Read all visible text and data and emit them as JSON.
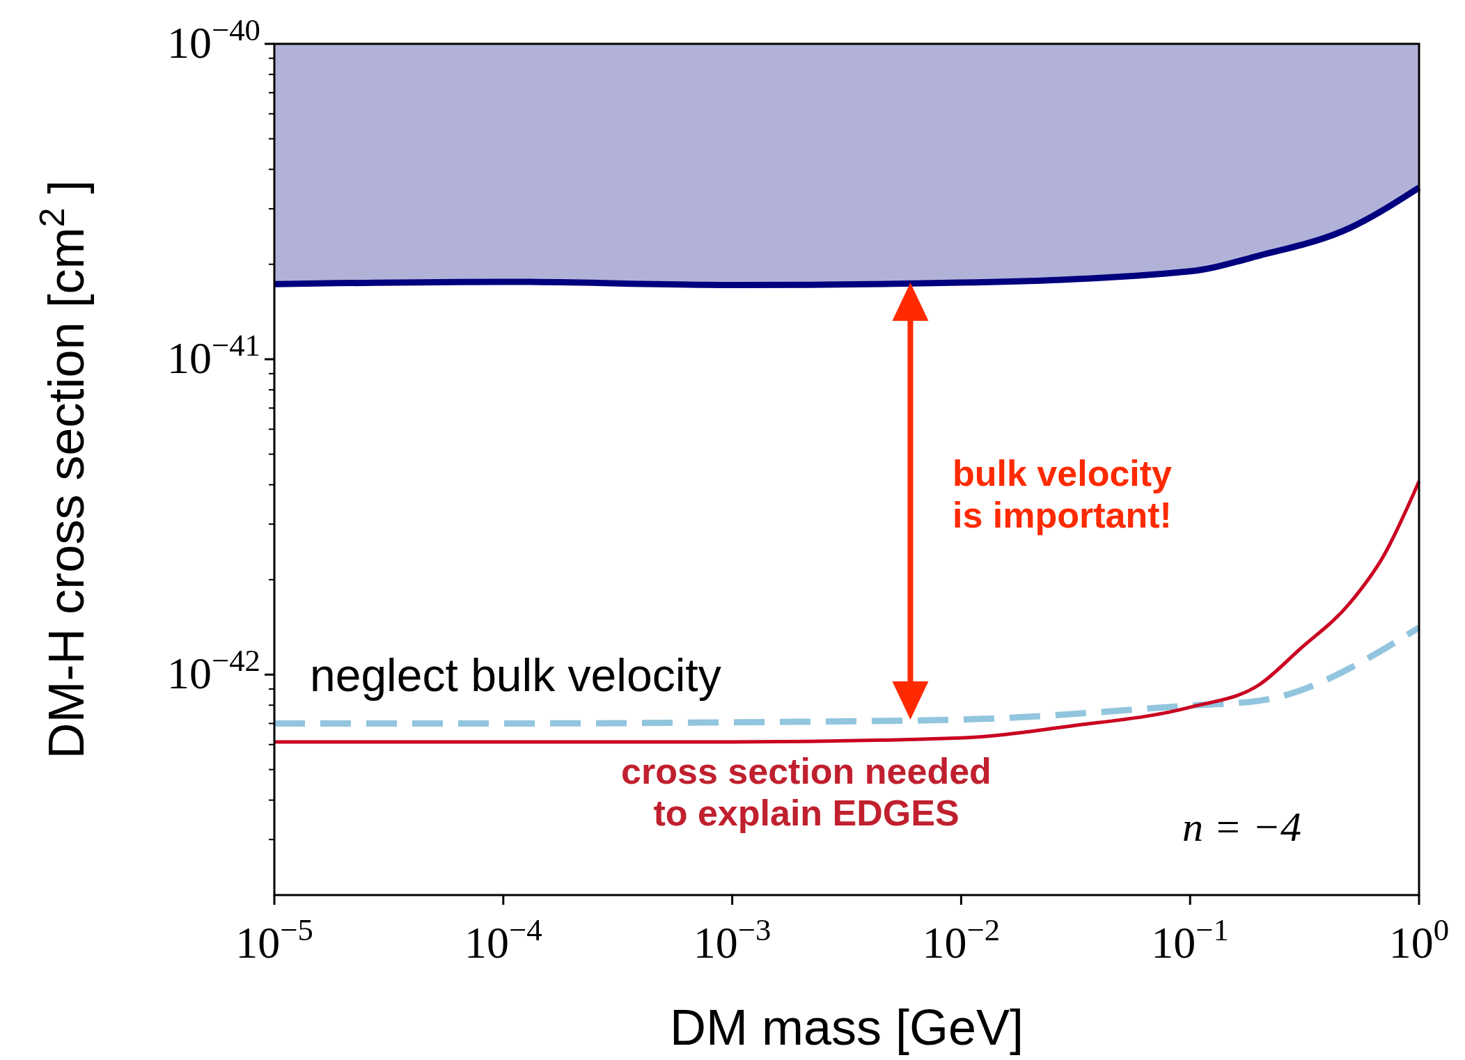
{
  "chart_data": {
    "type": "line",
    "xlabel": "DM mass [GeV]",
    "ylabel": "DM-H cross section [cm$^{2}$]",
    "log": "xy",
    "grid": false,
    "marker": "none",
    "xlim": [
      1e-05,
      1
    ],
    "ylim": [
      2e-43,
      1e-40
    ],
    "xticks": [
      {
        "value": 1e-05,
        "label": "10$^{−5}$"
      },
      {
        "value": 0.0001,
        "label": "10$^{−4}$"
      },
      {
        "value": 0.001,
        "label": "10$^{−3}$"
      },
      {
        "value": 0.01,
        "label": "10$^{−2}$"
      },
      {
        "value": 0.1,
        "label": "10$^{−1}$"
      },
      {
        "value": 1,
        "label": "10$^{0}$"
      }
    ],
    "yticks": [
      {
        "value": 3e-43,
        "label": null
      },
      {
        "value": 4e-43,
        "label": null
      },
      {
        "value": 5e-43,
        "label": null
      },
      {
        "value": 6e-43,
        "label": null
      },
      {
        "value": 7e-43,
        "label": null
      },
      {
        "value": 8e-43,
        "label": null
      },
      {
        "value": 9e-43,
        "label": null
      },
      {
        "value": 1e-42,
        "label": "10$^{−42}$"
      },
      {
        "value": 2e-42,
        "label": null
      },
      {
        "value": 3e-42,
        "label": null
      },
      {
        "value": 4e-42,
        "label": null
      },
      {
        "value": 5e-42,
        "label": null
      },
      {
        "value": 6e-42,
        "label": null
      },
      {
        "value": 7e-42,
        "label": null
      },
      {
        "value": 8e-42,
        "label": null
      },
      {
        "value": 9e-42,
        "label": null
      },
      {
        "value": 1e-41,
        "label": "10$^{−41}$"
      },
      {
        "value": 2e-41,
        "label": null
      },
      {
        "value": 3e-41,
        "label": null
      },
      {
        "value": 4e-41,
        "label": null
      },
      {
        "value": 5e-41,
        "label": null
      },
      {
        "value": 6e-41,
        "label": null
      },
      {
        "value": 7e-41,
        "label": null
      },
      {
        "value": 8e-41,
        "label": null
      },
      {
        "value": 9e-41,
        "label": null
      },
      {
        "value": 1e-40,
        "label": "10$^{−40}$"
      }
    ],
    "series": [
      {
        "color": "#00007f",
        "line_style": "solid",
        "x": [
          1e-05,
          0.0001,
          0.001,
          0.01,
          0.1,
          0.2,
          0.5,
          1
        ],
        "values": [
          1.73e-41,
          1.76e-41,
          1.72e-41,
          1.75e-41,
          1.9e-41,
          2.13e-41,
          2.61e-41,
          3.5e-41
        ],
        "lower": [
          1.73e-41,
          1.76e-41,
          1.72e-41,
          1.75e-41,
          1.9e-41,
          2.13e-41,
          2.61e-41,
          3.5e-41
        ],
        "upper": [
          1e-40,
          1e-40,
          1e-40,
          1e-40,
          1e-40,
          1e-40,
          1e-40,
          1e-40
        ]
      },
      {
        "color": "#92c5de",
        "line_style": "dashed",
        "x": [
          1e-05,
          0.0001,
          0.001,
          0.01,
          0.1,
          0.2,
          1
        ],
        "values": [
          7e-43,
          7e-43,
          7.06e-43,
          7.2e-43,
          7.98e-43,
          8.26e-43,
          1.41e-42
        ]
      },
      {
        "color": "#ca0020",
        "line_style": "solid",
        "x": [
          1e-05,
          0.0001,
          0.001,
          0.01,
          0.03,
          0.1,
          0.2,
          0.3,
          0.5,
          0.7,
          1
        ],
        "values": [
          6.12e-43,
          6.12e-43,
          6.12e-43,
          6.3e-43,
          6.87e-43,
          7.88e-43,
          9.28e-43,
          1.2e-42,
          1.69e-42,
          2.38e-42,
          4.1e-42
        ]
      }
    ],
    "annotations": [
      "neglect bulk velocity",
      "bulk velocity\nis important!",
      "cross section needed\nto explain EDGES",
      "n = −4"
    ]
  }
}
